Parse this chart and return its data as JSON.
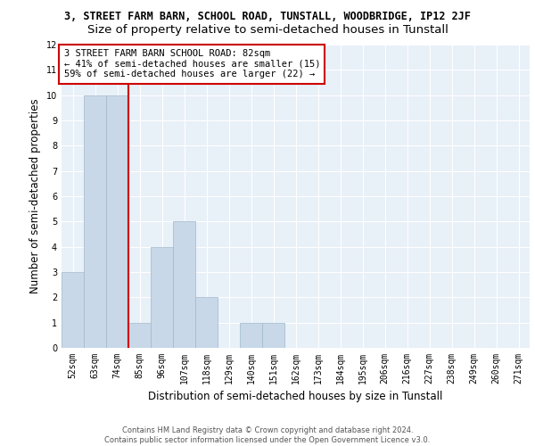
{
  "title_line1": "3, STREET FARM BARN, SCHOOL ROAD, TUNSTALL, WOODBRIDGE, IP12 2JF",
  "title_line2": "Size of property relative to semi-detached houses in Tunstall",
  "xlabel": "Distribution of semi-detached houses by size in Tunstall",
  "ylabel": "Number of semi-detached properties",
  "footer_line1": "Contains HM Land Registry data © Crown copyright and database right 2024.",
  "footer_line2": "Contains public sector information licensed under the Open Government Licence v3.0.",
  "bins": [
    "52sqm",
    "63sqm",
    "74sqm",
    "85sqm",
    "96sqm",
    "107sqm",
    "118sqm",
    "129sqm",
    "140sqm",
    "151sqm",
    "162sqm",
    "173sqm",
    "184sqm",
    "195sqm",
    "206sqm",
    "216sqm",
    "227sqm",
    "238sqm",
    "249sqm",
    "260sqm",
    "271sqm"
  ],
  "values": [
    3,
    10,
    10,
    1,
    4,
    5,
    2,
    0,
    1,
    1,
    0,
    0,
    0,
    0,
    0,
    0,
    0,
    0,
    0,
    0,
    0
  ],
  "bar_color": "#c8d8e8",
  "bar_edge_color": "#a0b8cc",
  "vline_pos": 3,
  "vline_color": "#cc0000",
  "ylim": [
    0,
    12
  ],
  "yticks": [
    0,
    1,
    2,
    3,
    4,
    5,
    6,
    7,
    8,
    9,
    10,
    11,
    12
  ],
  "annotation_text": "3 STREET FARM BARN SCHOOL ROAD: 82sqm\n← 41% of semi-detached houses are smaller (15)\n59% of semi-detached houses are larger (22) →",
  "annotation_box_color": "#cc0000",
  "background_color": "#e8f0f8",
  "grid_color": "#ffffff",
  "title_fontsize": 8.5,
  "subtitle_fontsize": 9.5,
  "axis_fontsize": 8.5,
  "tick_fontsize": 7,
  "annot_fontsize": 7.5,
  "footer_fontsize": 6
}
